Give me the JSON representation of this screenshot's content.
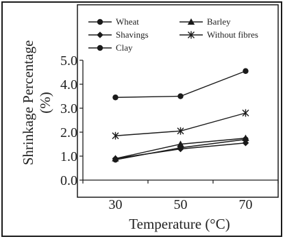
{
  "chart_data": {
    "type": "line",
    "title": "",
    "xlabel": "Temperature (°C)",
    "ylabel_line1": "Shrinkage Percentage",
    "ylabel_line2": "(%)",
    "x": [
      30,
      50,
      70
    ],
    "xlim": [
      20,
      80
    ],
    "ylim": [
      0.0,
      5.0
    ],
    "yticks": [
      "0.0",
      "1.0",
      "2.0",
      "3.0",
      "4.0",
      "5.0"
    ],
    "xticks": [
      "30",
      "50",
      "70"
    ],
    "grid": false,
    "legend": "top, inside plot frame, three rows",
    "series": [
      {
        "name": "Wheat",
        "marker": "circle",
        "values": [
          0.85,
          1.35,
          1.7
        ]
      },
      {
        "name": "Barley",
        "marker": "triangle",
        "values": [
          0.9,
          1.5,
          1.75
        ]
      },
      {
        "name": "Shavings",
        "marker": "diamond",
        "values": [
          0.9,
          1.3,
          1.55
        ]
      },
      {
        "name": "Without fibres",
        "marker": "star",
        "values": [
          1.85,
          2.05,
          2.8
        ]
      },
      {
        "name": "Clay",
        "marker": "circle",
        "values": [
          3.45,
          3.5,
          4.55
        ]
      }
    ],
    "colors": {
      "line": "#1a1a1a",
      "frame": "#1a1a1a",
      "background": "#ffffff"
    }
  }
}
